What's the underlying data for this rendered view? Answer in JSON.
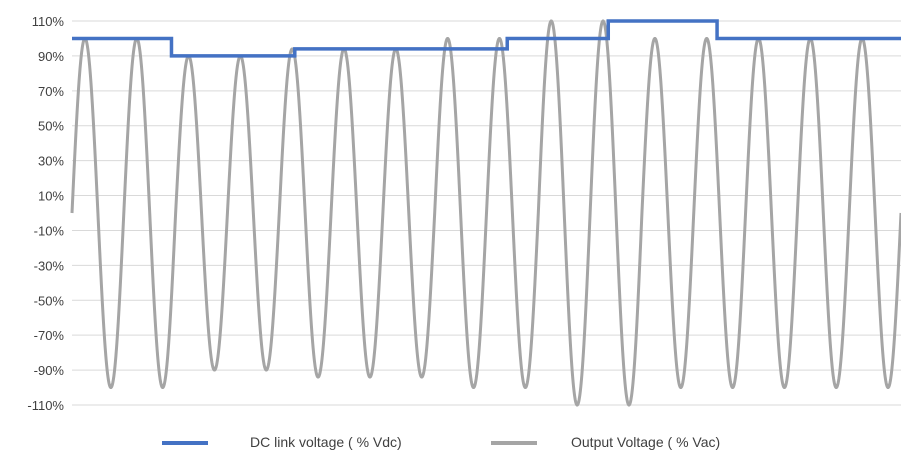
{
  "chart_data": {
    "type": "line",
    "title": "",
    "xlabel": "",
    "ylabel": "",
    "ylim": [
      -110,
      110
    ],
    "yticks": [
      "110%",
      "90%",
      "70%",
      "50%",
      "30%",
      "10%",
      "-10%",
      "-30%",
      "-50%",
      "-70%",
      "-90%",
      "-110%"
    ],
    "grid": true,
    "legend_position": "bottom",
    "series": [
      {
        "name": "DC link voltage ( % Vdc)",
        "color": "#4472C4",
        "steps": [
          {
            "x_start": 0.0,
            "x_end": 1.92,
            "value": 100
          },
          {
            "x_start": 1.92,
            "x_end": 4.3,
            "value": 90
          },
          {
            "x_start": 4.3,
            "x_end": 8.4,
            "value": 94
          },
          {
            "x_start": 8.4,
            "x_end": 10.35,
            "value": 100
          },
          {
            "x_start": 10.35,
            "x_end": 12.45,
            "value": 110
          },
          {
            "x_start": 12.45,
            "x_end": 16.0,
            "value": 100
          }
        ]
      },
      {
        "name": "Output Voltage ( % Vac)",
        "color": "#A5A5A5",
        "cycles": 16,
        "amplitude_by_cycle": [
          100,
          100,
          90,
          90,
          94,
          94,
          94,
          100,
          100,
          110,
          110,
          100,
          100,
          100,
          100,
          100
        ]
      }
    ]
  },
  "legend": {
    "dc_label": "DC link voltage ( % Vdc)",
    "output_label": "Output Voltage ( % Vac)"
  }
}
